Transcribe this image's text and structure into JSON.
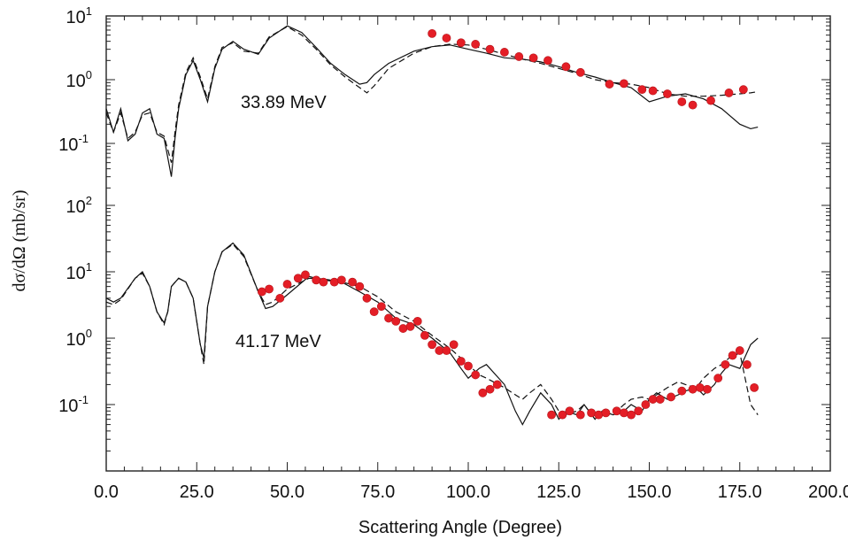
{
  "chart_data": {
    "type": "scatter",
    "xlabel": "Scattering Angle (Degree)",
    "ylabel": "dσ/dΩ (mb/sr)",
    "xlim": [
      0,
      200
    ],
    "x_ticks": [
      "0.0",
      "25.0",
      "50.0",
      "75.0",
      "100.0",
      "125.0",
      "150.0",
      "175.0",
      "200.0"
    ],
    "y_scale": "log",
    "y_tick_labels_upper": [
      {
        "base": "10",
        "exp": "1"
      },
      {
        "base": "10",
        "exp": "0"
      },
      {
        "base": "10",
        "exp": "-1"
      }
    ],
    "y_tick_labels_lower": [
      {
        "base": "10",
        "exp": "2"
      },
      {
        "base": "10",
        "exp": "1"
      },
      {
        "base": "10",
        "exp": "0"
      },
      {
        "base": "10",
        "exp": "-1"
      }
    ],
    "panels": [
      {
        "label": "33.89 MeV",
        "ylim": [
          0.05,
          10
        ],
        "series": [
          {
            "style": "solid",
            "x": [
              0,
              2,
              4,
              6,
              8,
              10,
              12,
              14,
              16,
              18,
              19,
              20,
              22,
              24,
              26,
              28,
              30,
              32,
              35,
              38,
              42,
              45,
              50,
              54,
              58,
              62,
              66,
              70,
              72,
              74,
              78,
              85,
              90,
              95,
              100,
              105,
              110,
              115,
              120,
              125,
              130,
              135,
              140,
              145,
              150,
              155,
              160,
              165,
              170,
              175,
              178,
              180
            ],
            "y": [
              0.35,
              0.15,
              0.35,
              0.11,
              0.14,
              0.3,
              0.35,
              0.14,
              0.12,
              0.03,
              0.12,
              0.35,
              1.2,
              2.0,
              1.0,
              0.45,
              1.5,
              3.0,
              4.0,
              3.0,
              2.5,
              4.5,
              7.0,
              5.5,
              3.2,
              1.8,
              1.2,
              0.85,
              0.9,
              1.2,
              1.8,
              2.8,
              3.3,
              3.5,
              3.0,
              2.6,
              2.2,
              2.1,
              1.9,
              1.6,
              1.3,
              1.1,
              0.9,
              0.75,
              0.45,
              0.55,
              0.6,
              0.5,
              0.35,
              0.2,
              0.17,
              0.18
            ]
          },
          {
            "style": "dashed",
            "x": [
              0,
              2,
              4,
              6,
              8,
              10,
              12,
              14,
              16,
              18,
              19,
              20,
              22,
              24,
              26,
              28,
              30,
              32,
              35,
              38,
              42,
              45,
              50,
              54,
              58,
              62,
              66,
              70,
              72,
              74,
              78,
              85,
              90,
              95,
              100,
              105,
              110,
              115,
              120,
              125,
              130,
              135,
              140,
              145,
              150,
              155,
              160,
              165,
              170,
              175,
              178,
              180
            ],
            "y": [
              0.3,
              0.15,
              0.3,
              0.12,
              0.15,
              0.28,
              0.3,
              0.15,
              0.13,
              0.05,
              0.15,
              0.4,
              1.3,
              2.2,
              1.1,
              0.5,
              1.6,
              3.2,
              3.8,
              2.8,
              2.6,
              4.7,
              6.8,
              5.0,
              3.0,
              1.7,
              1.1,
              0.75,
              0.62,
              0.8,
              1.5,
              2.6,
              3.3,
              3.6,
              3.5,
              3.0,
              2.5,
              2.1,
              1.8,
              1.5,
              1.25,
              1.0,
              0.9,
              0.85,
              0.75,
              0.6,
              0.55,
              0.55,
              0.57,
              0.6,
              0.62,
              0.65
            ]
          }
        ],
        "points": {
          "x": [
            90,
            94,
            98,
            102,
            106,
            110,
            114,
            118,
            122,
            127,
            131,
            139,
            143,
            148,
            151,
            155,
            159,
            162,
            167,
            172,
            176
          ],
          "y": [
            5.3,
            4.5,
            3.8,
            3.6,
            3.0,
            2.7,
            2.3,
            2.2,
            2.0,
            1.6,
            1.3,
            0.85,
            0.87,
            0.7,
            0.67,
            0.6,
            0.45,
            0.4,
            0.47,
            0.62,
            0.7
          ]
        }
      },
      {
        "label": "41.17 MeV",
        "ylim": [
          0.012,
          100
        ],
        "series": [
          {
            "style": "solid",
            "x": [
              0,
              2,
              4,
              8,
              10,
              12,
              14,
              16,
              17,
              18,
              20,
              22,
              24,
              26,
              27,
              28,
              30,
              32,
              35,
              38,
              42,
              44,
              46,
              50,
              56,
              60,
              65,
              70,
              75,
              80,
              85,
              90,
              95,
              98,
              100,
              103,
              105,
              110,
              113,
              115,
              117,
              120,
              123,
              125,
              127,
              130,
              132,
              135,
              137,
              140,
              143,
              145,
              148,
              150,
              152,
              155,
              158,
              160,
              163,
              165,
              168,
              170,
              172,
              175,
              178,
              180
            ],
            "y": [
              4,
              3.5,
              4,
              8,
              10,
              6,
              2.5,
              1.7,
              2.5,
              6,
              8,
              7,
              4,
              0.8,
              0.5,
              3,
              10,
              20,
              27,
              18,
              5,
              2.8,
              3,
              4.5,
              8.5,
              7.5,
              7,
              5,
              3.5,
              2,
              1.6,
              1,
              0.6,
              0.35,
              0.25,
              0.35,
              0.4,
              0.2,
              0.08,
              0.05,
              0.08,
              0.15,
              0.1,
              0.06,
              0.08,
              0.07,
              0.1,
              0.06,
              0.08,
              0.07,
              0.08,
              0.1,
              0.08,
              0.12,
              0.15,
              0.12,
              0.14,
              0.16,
              0.18,
              0.14,
              0.2,
              0.3,
              0.4,
              0.35,
              0.8,
              1.0
            ]
          },
          {
            "style": "dashed",
            "x": [
              0,
              2,
              4,
              8,
              10,
              12,
              14,
              16,
              17,
              18,
              20,
              22,
              24,
              26,
              27,
              28,
              30,
              32,
              35,
              38,
              42,
              44,
              46,
              50,
              56,
              60,
              65,
              70,
              75,
              80,
              85,
              90,
              95,
              98,
              100,
              103,
              105,
              110,
              113,
              115,
              117,
              120,
              123,
              125,
              127,
              130,
              132,
              135,
              137,
              140,
              143,
              145,
              148,
              150,
              152,
              155,
              158,
              160,
              163,
              165,
              168,
              170,
              172,
              175,
              178,
              180
            ],
            "y": [
              3.5,
              3.2,
              3.8,
              8,
              9.5,
              6,
              2.5,
              1.6,
              2.5,
              6,
              8,
              7,
              4,
              0.8,
              0.4,
              3,
              10,
              20,
              26,
              17,
              5,
              3.2,
              3.5,
              5.5,
              8,
              7.8,
              7,
              6,
              4.2,
              2.5,
              1.8,
              1.1,
              0.7,
              0.5,
              0.4,
              0.28,
              0.25,
              0.18,
              0.14,
              0.12,
              0.15,
              0.2,
              0.12,
              0.08,
              0.07,
              0.08,
              0.1,
              0.06,
              0.08,
              0.07,
              0.1,
              0.12,
              0.13,
              0.12,
              0.14,
              0.18,
              0.22,
              0.2,
              0.18,
              0.25,
              0.35,
              0.4,
              0.5,
              0.6,
              0.1,
              0.07
            ]
          }
        ],
        "points": {
          "x": [
            43,
            45,
            48,
            50,
            53,
            55,
            58,
            60,
            63,
            65,
            68,
            70,
            72,
            74,
            76,
            78,
            80,
            82,
            84,
            86,
            88,
            90,
            92,
            94,
            96,
            98,
            100,
            102,
            104,
            106,
            108,
            123,
            126,
            128,
            131,
            134,
            136,
            138,
            141,
            143,
            145,
            147,
            149,
            151,
            153,
            156,
            159,
            162,
            164,
            166,
            169,
            171,
            173,
            175,
            177,
            179
          ],
          "y": [
            5,
            5.5,
            4,
            6.5,
            8,
            9,
            7.5,
            7,
            7,
            7.5,
            7,
            6,
            4,
            2.5,
            3,
            2,
            1.8,
            1.4,
            1.5,
            1.8,
            1.1,
            0.8,
            0.65,
            0.65,
            0.8,
            0.45,
            0.38,
            0.28,
            0.15,
            0.17,
            0.2,
            0.07,
            0.07,
            0.08,
            0.07,
            0.075,
            0.07,
            0.075,
            0.08,
            0.075,
            0.07,
            0.08,
            0.1,
            0.12,
            0.12,
            0.13,
            0.16,
            0.17,
            0.18,
            0.17,
            0.25,
            0.4,
            0.55,
            0.65,
            0.4,
            0.18
          ]
        }
      }
    ]
  }
}
